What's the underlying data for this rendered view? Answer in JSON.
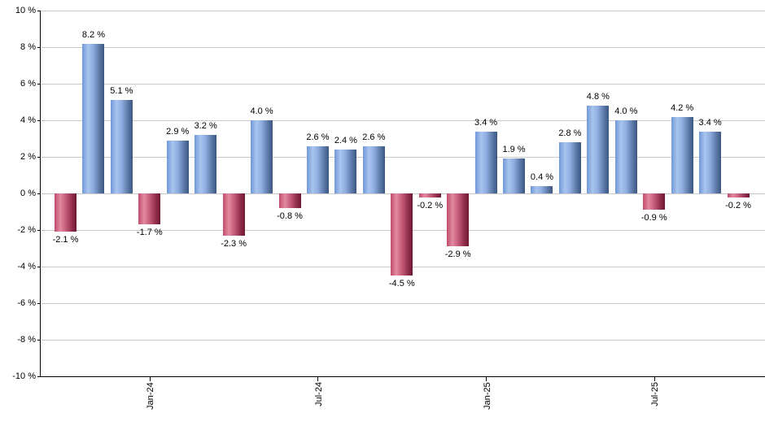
{
  "chart_data": {
    "type": "bar",
    "title": "",
    "xlabel": "",
    "ylabel": "",
    "ylim": [
      -10,
      10
    ],
    "grid": "horizontal",
    "values": [
      -2.1,
      8.2,
      5.1,
      -1.7,
      2.9,
      3.2,
      -2.3,
      4.0,
      -0.8,
      2.6,
      2.4,
      2.6,
      -4.5,
      -0.2,
      -2.9,
      3.4,
      1.9,
      0.4,
      2.8,
      4.8,
      4.0,
      -0.9,
      4.2,
      3.4,
      -0.2
    ],
    "bar_labels": [
      "-2.1 %",
      "8.2 %",
      "5.1 %",
      "-1.7 %",
      "2.9 %",
      "3.2 %",
      "-2.3 %",
      "4.0 %",
      "-0.8 %",
      "2.6 %",
      "2.4 %",
      "2.6 %",
      "-4.5 %",
      "-0.2 %",
      "-2.9 %",
      "3.4 %",
      "1.9 %",
      "0.4 %",
      "2.8 %",
      "4.8 %",
      "4.0 %",
      "-0.9 %",
      "4.2 %",
      "3.4 %",
      "-0.2 %"
    ],
    "x_ticks": [
      {
        "bar_index": 3,
        "label": "Jan-24"
      },
      {
        "bar_index": 9,
        "label": "Jul-24"
      },
      {
        "bar_index": 15,
        "label": "Jan-25"
      },
      {
        "bar_index": 21,
        "label": "Jul-25"
      }
    ],
    "y_ticks": [
      {
        "value": 10,
        "label": "10 %"
      },
      {
        "value": 8,
        "label": "8 %"
      },
      {
        "value": 6,
        "label": "6 %"
      },
      {
        "value": 4,
        "label": "4 %"
      },
      {
        "value": 2,
        "label": "2 %"
      },
      {
        "value": 0,
        "label": "0 %"
      },
      {
        "value": -2,
        "label": "-2 %"
      },
      {
        "value": -4,
        "label": "-4 %"
      },
      {
        "value": -6,
        "label": "-6 %"
      },
      {
        "value": -8,
        "label": "-8 %"
      },
      {
        "value": -10,
        "label": "-10 %"
      }
    ],
    "colors": {
      "background": "#ffffff",
      "gridline": "#c9c9c9",
      "axis": "#000000",
      "text": "#000000",
      "positive_bar_gradient": [
        "#6f97d8 0%",
        "#a9c4ee 26%",
        "#8fade0 50%",
        "#5d79a8 78%",
        "#3b5780 100%"
      ],
      "negative_bar_gradient": [
        "#c04c6a 0%",
        "#e289a1 26%",
        "#c75e7c 50%",
        "#93304d 78%",
        "#6e1833 100%"
      ]
    }
  }
}
